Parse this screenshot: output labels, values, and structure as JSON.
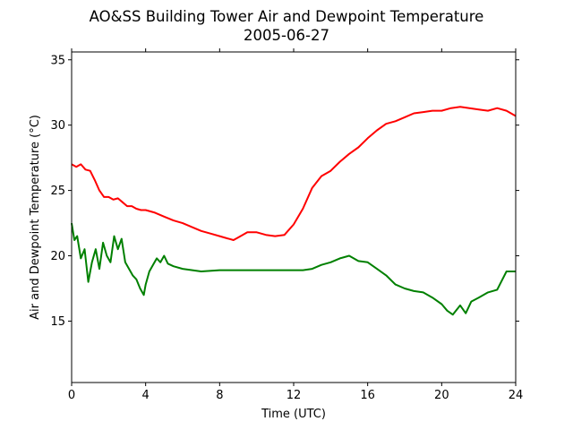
{
  "chart_data": {
    "type": "line",
    "title": "AO&SS Building Tower Air and Dewpoint Temperature",
    "subtitle": "2005-06-27",
    "xlabel": "Time (UTC)",
    "ylabel": "Air and Dewpoint Temperature (°C)",
    "xlim": [
      0,
      24
    ],
    "ylim": [
      10.3,
      35.6
    ],
    "xticks": [
      0,
      4,
      8,
      12,
      16,
      20,
      24
    ],
    "yticks": [
      15,
      20,
      25,
      30,
      35
    ],
    "grid": false,
    "series": [
      {
        "color": "#ff0000",
        "x": [
          0,
          0.25,
          0.5,
          0.75,
          1,
          1.25,
          1.5,
          1.75,
          2,
          2.25,
          2.5,
          2.75,
          3,
          3.25,
          3.5,
          3.75,
          4,
          4.5,
          5,
          5.5,
          6,
          6.5,
          7,
          7.5,
          8,
          8.5,
          8.75,
          9,
          9.5,
          10,
          10.5,
          11,
          11.5,
          12,
          12.5,
          13,
          13.5,
          14,
          14.5,
          15,
          15.5,
          16,
          16.5,
          17,
          17.5,
          18,
          18.5,
          19,
          19.5,
          20,
          20.5,
          21,
          21.5,
          22,
          22.5,
          23,
          23.5,
          24
        ],
        "values": [
          27.0,
          26.8,
          27.0,
          26.6,
          26.5,
          25.8,
          25.0,
          24.5,
          24.5,
          24.3,
          24.4,
          24.1,
          23.8,
          23.8,
          23.6,
          23.5,
          23.5,
          23.3,
          23.0,
          22.7,
          22.5,
          22.2,
          21.9,
          21.7,
          21.5,
          21.3,
          21.2,
          21.4,
          21.8,
          21.8,
          21.6,
          21.5,
          21.6,
          22.4,
          23.6,
          25.2,
          26.1,
          26.5,
          27.2,
          27.8,
          28.3,
          29.0,
          29.6,
          30.1,
          30.3,
          30.6,
          30.9,
          31.0,
          31.1,
          31.1,
          31.3,
          31.4,
          31.3,
          31.2,
          31.1,
          31.3,
          31.1,
          30.7
        ]
      },
      {
        "color": "#008000",
        "x": [
          0,
          0.15,
          0.3,
          0.5,
          0.7,
          0.9,
          1.1,
          1.3,
          1.5,
          1.7,
          1.9,
          2.1,
          2.3,
          2.5,
          2.7,
          2.9,
          3.1,
          3.3,
          3.5,
          3.7,
          3.9,
          4.0,
          4.2,
          4.4,
          4.6,
          4.8,
          5.0,
          5.2,
          5.5,
          6,
          7,
          8,
          9,
          10,
          11,
          12,
          12.5,
          13,
          13.5,
          14,
          14.5,
          15,
          15.5,
          16,
          16.5,
          17,
          17.5,
          18,
          18.5,
          19,
          19.5,
          20,
          20.3,
          20.6,
          21,
          21.3,
          21.6,
          22,
          22.5,
          23,
          23.5,
          24
        ],
        "values": [
          22.5,
          21.2,
          21.5,
          19.8,
          20.5,
          18.0,
          19.5,
          20.5,
          19.0,
          21.0,
          20.0,
          19.5,
          21.5,
          20.5,
          21.3,
          19.5,
          19.0,
          18.5,
          18.2,
          17.5,
          17.0,
          17.8,
          18.8,
          19.3,
          19.8,
          19.5,
          20.0,
          19.4,
          19.2,
          19.0,
          18.8,
          18.9,
          18.9,
          18.9,
          18.9,
          18.9,
          18.9,
          19.0,
          19.3,
          19.5,
          19.8,
          20.0,
          19.6,
          19.5,
          19.0,
          18.5,
          17.8,
          17.5,
          17.3,
          17.2,
          16.8,
          16.3,
          15.8,
          15.5,
          16.2,
          15.6,
          16.5,
          16.8,
          17.2,
          17.4,
          18.8,
          18.8
        ]
      }
    ]
  }
}
